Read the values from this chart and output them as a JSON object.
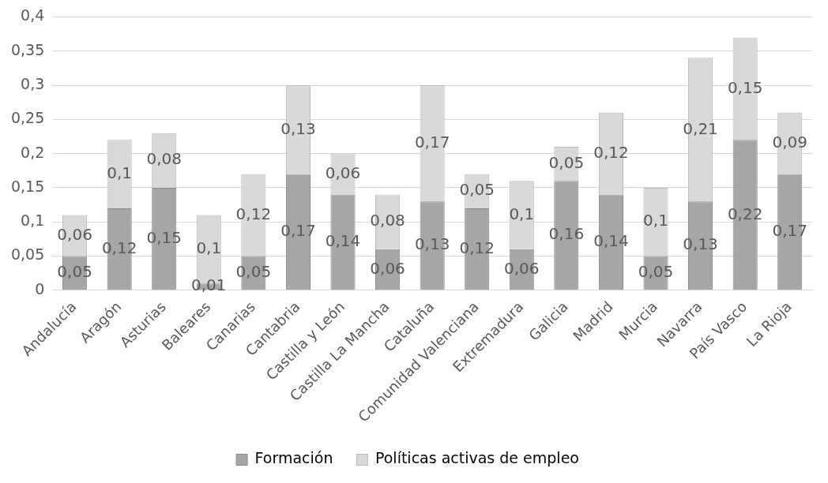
{
  "chart_data": {
    "type": "bar",
    "stacked": true,
    "categories": [
      "Andalucía",
      "Aragón",
      "Asturias",
      "Baleares",
      "Canarias",
      "Cantabria",
      "Castilla y León",
      "Castilla La Mancha",
      "Cataluña",
      "Comunidad Valenciana",
      "Extremadura",
      "Galicia",
      "Madrid",
      "Murcia",
      "Navarra",
      "País Vasco",
      "La Rioja"
    ],
    "series": [
      {
        "name": "Formación",
        "color": "#a6a6a6",
        "values": [
          0.05,
          0.12,
          0.15,
          0.01,
          0.05,
          0.17,
          0.14,
          0.06,
          0.13,
          0.12,
          0.06,
          0.16,
          0.14,
          0.05,
          0.13,
          0.22,
          0.17
        ],
        "value_labels": [
          "0,05",
          "0,12",
          "0,15",
          "0,01",
          "0,05",
          "0,17",
          "0,14",
          "0,06",
          "0,13",
          "0,12",
          "0,06",
          "0,16",
          "0,14",
          "0,05",
          "0,13",
          "0,22",
          "0,17"
        ]
      },
      {
        "name": "Políticas activas de empleo",
        "color": "#d9d9d9",
        "values": [
          0.06,
          0.1,
          0.08,
          0.1,
          0.12,
          0.13,
          0.06,
          0.08,
          0.17,
          0.05,
          0.1,
          0.05,
          0.12,
          0.1,
          0.21,
          0.15,
          0.09
        ],
        "value_labels": [
          "0,06",
          "0,1",
          "0,08",
          "0,1",
          "0,12",
          "0,13",
          "0,06",
          "0,08",
          "0,17",
          "0,05",
          "0,1",
          "0,05",
          "0,12",
          "0,1",
          "0,21",
          "0,15",
          "0,09"
        ]
      }
    ],
    "ylim": [
      0,
      0.4
    ],
    "yticks": [
      0,
      {
        "value": 0.05,
        "label": "0,05"
      },
      {
        "value": 0.1,
        "label": "0,1"
      },
      {
        "value": 0.15,
        "label": "0,15"
      },
      {
        "value": 0.2,
        "label": "0,2"
      },
      {
        "value": 0.25,
        "label": "0,25"
      },
      {
        "value": 0.3,
        "label": "0,3"
      },
      {
        "value": 0.35,
        "label": "0,35"
      },
      {
        "value": 0.4,
        "label": "0,4"
      }
    ],
    "grid": "y",
    "legend": "bottom"
  }
}
